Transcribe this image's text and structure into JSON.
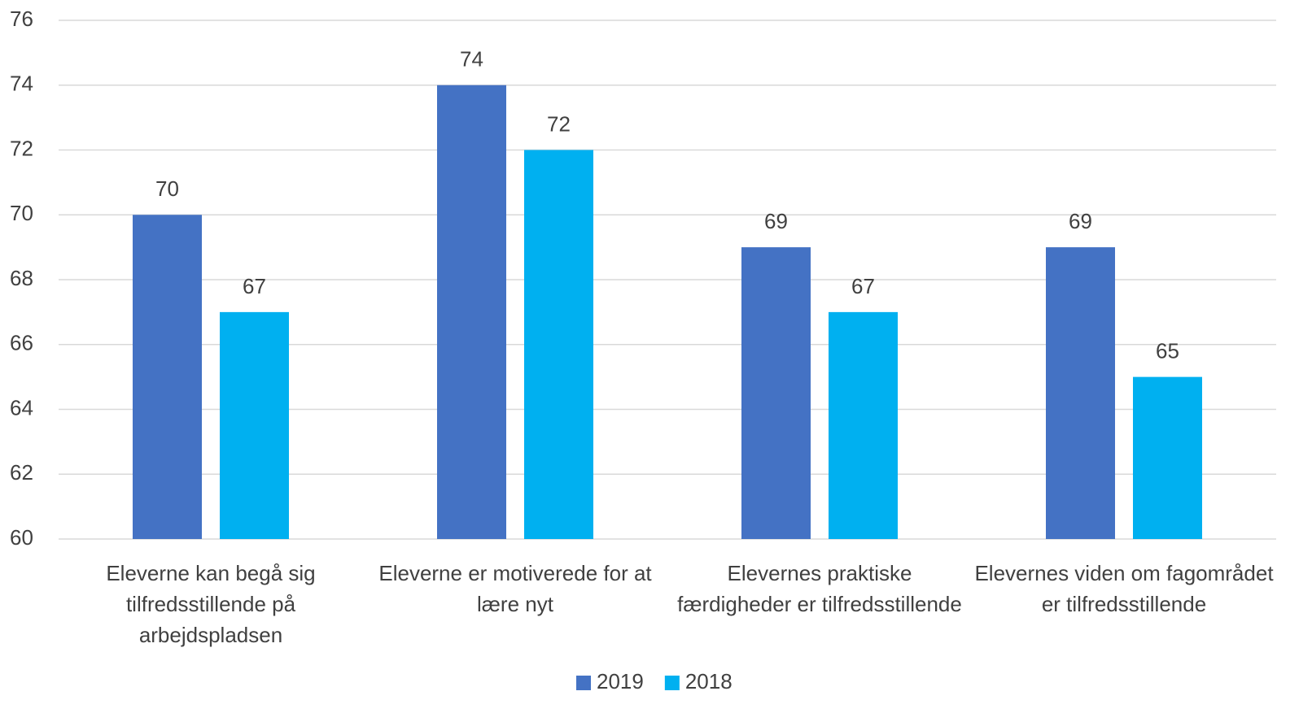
{
  "chart_data": {
    "type": "bar",
    "categories": [
      "Eleverne kan begå sig tilfredsstillende på arbejdspladsen",
      "Eleverne er motiverede for at lære nyt",
      "Elevernes praktiske færdigheder er tilfredsstillende",
      "Elevernes viden om fagområdet er tilfredsstillende"
    ],
    "series": [
      {
        "name": "2019",
        "color": "#4472c4",
        "values": [
          70,
          74,
          69,
          69
        ]
      },
      {
        "name": "2018",
        "color": "#00b0f0",
        "values": [
          67,
          72,
          67,
          65
        ]
      }
    ],
    "ylim": [
      60,
      76
    ],
    "yticks": [
      60,
      62,
      64,
      66,
      68,
      70,
      72,
      74,
      76
    ],
    "grid": true,
    "legend": "bottom"
  }
}
